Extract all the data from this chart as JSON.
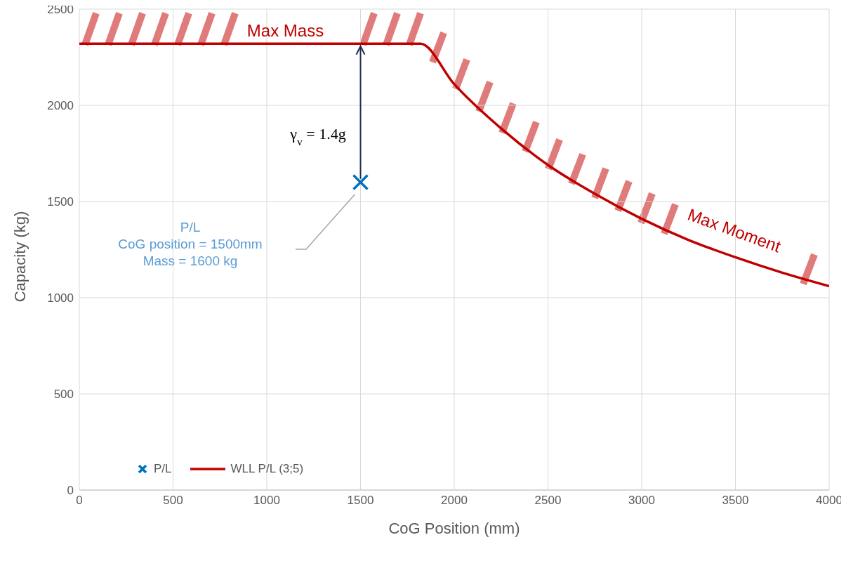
{
  "chart_data": {
    "type": "line",
    "xlabel": "CoG Position (mm)",
    "ylabel": "Capacity (kg)",
    "xlim": [
      0,
      4000
    ],
    "xticks": [
      0,
      500,
      1000,
      1500,
      2000,
      2500,
      3000,
      3500,
      4000
    ],
    "ylim": [
      0,
      2500
    ],
    "yticks": [
      0,
      500,
      1000,
      1500,
      2000,
      2500
    ],
    "grid": true,
    "legend": "bottom left",
    "series": [
      {
        "name": "P/L",
        "type": "scatter",
        "marker": "cross",
        "color": "#0070c0",
        "x": [
          1500
        ],
        "values": [
          1600
        ]
      },
      {
        "name": "WLL P/L (3;5)",
        "marker": "none",
        "color": "#c00000",
        "x": [
          0,
          1820,
          2000,
          2250,
          2500,
          2750,
          3000,
          3250,
          3500,
          3750,
          4000
        ],
        "values": [
          2320,
          2320,
          2110,
          1880,
          1690,
          1540,
          1410,
          1300,
          1210,
          1130,
          1060
        ]
      }
    ],
    "annotations": [
      {
        "text": "Max Mass",
        "x": 1400,
        "y": 2320
      },
      "Max Moment",
      "γ$_{v}$ = 1.4g",
      "P/L\nCoG position = 1500mm\nMass = 1600 kg"
    ]
  }
}
